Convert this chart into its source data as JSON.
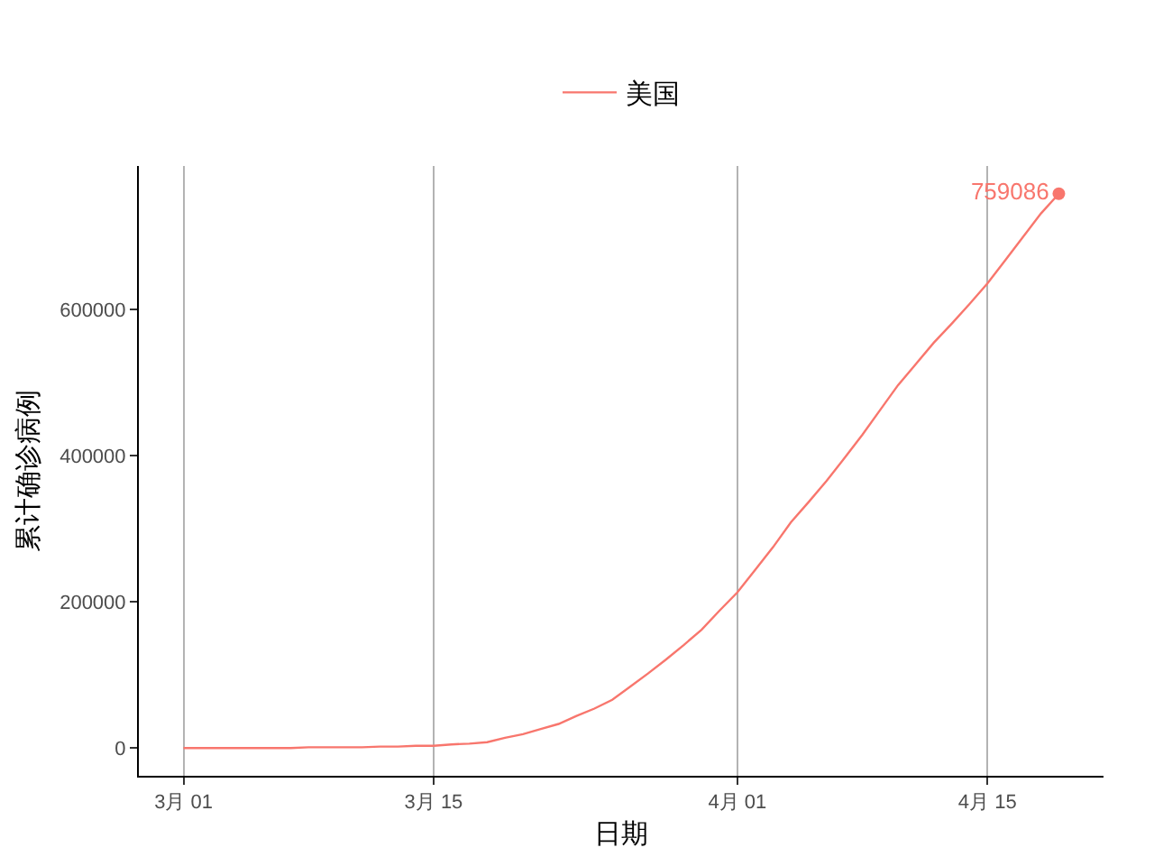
{
  "chart_data": {
    "type": "line",
    "xlabel": "日期",
    "ylabel": "累计确诊病例",
    "x": [
      "--03-01",
      "--03-02",
      "--03-03",
      "--03-04",
      "--03-05",
      "--03-06",
      "--03-07",
      "--03-08",
      "--03-09",
      "--03-10",
      "--03-11",
      "--03-12",
      "--03-13",
      "--03-14",
      "--03-15",
      "--03-16",
      "--03-17",
      "--03-18",
      "--03-19",
      "--03-20",
      "--03-21",
      "--03-22",
      "--03-23",
      "--03-24",
      "--03-25",
      "--03-26",
      "--03-27",
      "--03-28",
      "--03-29",
      "--03-30",
      "--03-31",
      "--04-01",
      "--04-02",
      "--04-03",
      "--04-04",
      "--04-05",
      "--04-06",
      "--04-07",
      "--04-08",
      "--04-09",
      "--04-10",
      "--04-11",
      "--04-12",
      "--04-13",
      "--04-14",
      "--04-15",
      "--04-16",
      "--04-17",
      "--04-18",
      "--04-19"
    ],
    "series": [
      {
        "name": "美国",
        "color": "#f8766d",
        "values": [
          0,
          0,
          0,
          0,
          0,
          0,
          0,
          1000,
          1000,
          1000,
          1000,
          2000,
          2000,
          3000,
          3000,
          5000,
          6000,
          8000,
          14000,
          19000,
          26000,
          33000,
          44000,
          54000,
          66000,
          84000,
          102000,
          121000,
          141000,
          162000,
          188000,
          213000,
          244000,
          275000,
          309000,
          337000,
          366000,
          397000,
          429000,
          463000,
          497000,
          526000,
          555000,
          581000,
          608000,
          636000,
          668000,
          700000,
          732000,
          759000
        ]
      },
      {
        "type": "scatter",
        "color": "#f8766d",
        "marker": "circle",
        "x": [
          "--04-19"
        ],
        "values": [
          759086
        ],
        "value_labels": [
          "759086"
        ]
      }
    ],
    "xlim": [
      "--02-26T12:00",
      "--04-21T12:00"
    ],
    "xticks": [
      {
        "value": "--03-01",
        "label": "3月 01"
      },
      {
        "value": "--03-15",
        "label": "3月 15"
      },
      {
        "value": "--04-01",
        "label": "4月 01"
      },
      {
        "value": "--04-15",
        "label": "4月 15"
      }
    ],
    "ylim": [
      -38000,
      797000
    ],
    "yticks": [
      0,
      200000,
      400000,
      600000
    ],
    "grid": "x",
    "legend": "top"
  }
}
